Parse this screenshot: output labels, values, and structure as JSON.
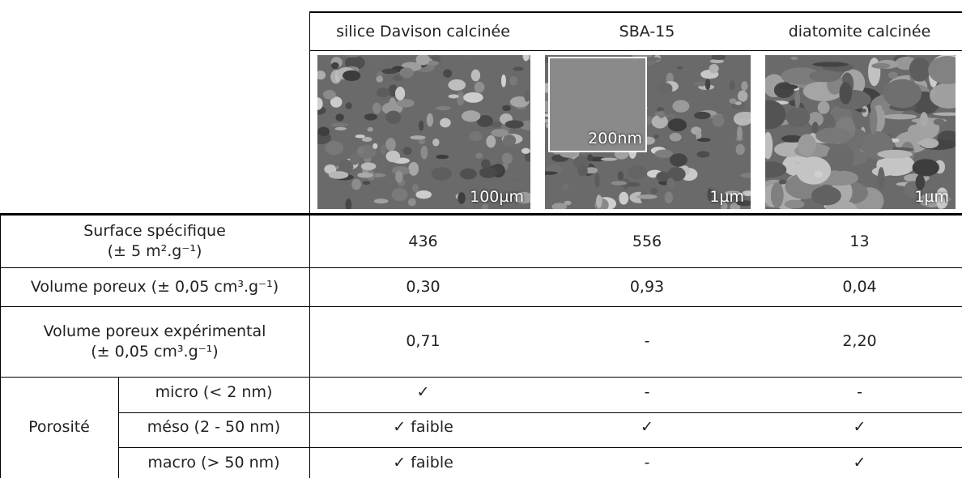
{
  "columns": [
    {
      "title": "silice Davison calcinée",
      "scale_label": "100µm"
    },
    {
      "title": "SBA-15",
      "scale_label": "1µm",
      "inset_label": "200nm"
    },
    {
      "title": "diatomite calcinée",
      "scale_label": "1µm"
    }
  ],
  "rows": [
    {
      "label": [
        "Surface spécifique",
        "(± 5 m².g⁻¹)"
      ],
      "cells": [
        "436",
        "556",
        "13"
      ]
    },
    {
      "label": [
        "Volume poreux (± 0,05 cm³.g⁻¹)"
      ],
      "cells": [
        "0,30",
        "0,93",
        "0,04"
      ]
    },
    {
      "label": [
        "Volume poreux expérimental",
        "(± 0,05 cm³.g⁻¹)"
      ],
      "cells": [
        "0,71",
        "-",
        "2,20"
      ]
    }
  ],
  "porosity": {
    "label": "Porosité",
    "rows": [
      {
        "label": "micro (< 2 nm)",
        "cells": [
          "✓",
          "-",
          "-"
        ]
      },
      {
        "label": "méso (2 - 50 nm)",
        "cells": [
          "✓ faible",
          "✓",
          "✓"
        ]
      },
      {
        "label": "macro (> 50 nm)",
        "cells": [
          "✓ faible",
          "-",
          "✓"
        ]
      }
    ]
  }
}
